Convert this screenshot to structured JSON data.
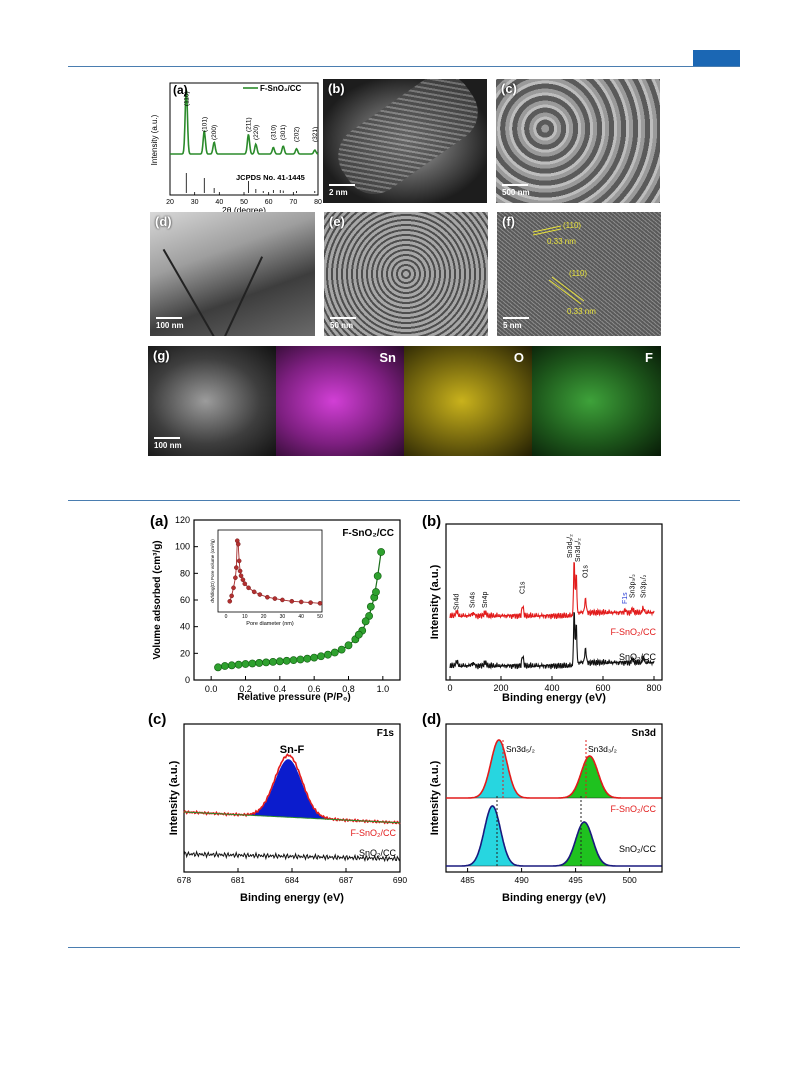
{
  "fig1": {
    "xrd": {
      "label": "(a)",
      "legend": "F-SnO₂/CC",
      "ylabel": "Intensity (a.u.)",
      "xlabel": "2θ (degree)",
      "xticks": [
        "20",
        "30",
        "40",
        "50",
        "60",
        "70",
        "80"
      ],
      "peaks": [
        "(110)",
        "(101)",
        "(200)",
        "(211)",
        "(220)",
        "(310)",
        "(301)",
        "(202)",
        "(321)"
      ],
      "reference": "JCPDS No. 41-1445"
    },
    "panels": [
      {
        "id": "b",
        "label": "(b)",
        "scale": "2 nm"
      },
      {
        "id": "c",
        "label": "(c)",
        "scale": "500 nm"
      },
      {
        "id": "d",
        "label": "(d)",
        "scale": "100 nm"
      },
      {
        "id": "e",
        "label": "(e)",
        "scale": "50 nm"
      },
      {
        "id": "f",
        "label": "(f)",
        "scale": "5 nm",
        "lattice1": "(110)",
        "spacing1": "0.33 nm",
        "lattice2": "(110)",
        "spacing2": "0.33 nm"
      }
    ],
    "mapping": {
      "label": "(g)",
      "scale": "100 nm",
      "elements": [
        "Sn",
        "O",
        "F"
      ],
      "colors": [
        "#d23fd6",
        "#c9b21c",
        "#3ea23a"
      ]
    }
  },
  "fig2": {
    "a": {
      "label": "(a)",
      "legend": "F-SnO₂/CC",
      "ylabel": "Volume adsorbed (cm³/g)",
      "xlabel": "Relative pressure (P/P₀)",
      "yticks": [
        "0",
        "20",
        "40",
        "60",
        "80",
        "100",
        "120"
      ],
      "xticks": [
        "0.0",
        "0.2",
        "0.4",
        "0.6",
        "0.8",
        "1.0"
      ],
      "inset_ylabel": "dV/dlog(D) Pore volume (cm³/g)",
      "inset_xlabel": "Pore diameter (nm)",
      "inset_xticks": [
        "0",
        "10",
        "20",
        "30",
        "40",
        "50"
      ],
      "inset_yticks": [
        "0.0",
        "0.2",
        "0.4",
        "0.6",
        "0.8",
        "1.0"
      ]
    },
    "b": {
      "label": "(b)",
      "ylabel": "Intensity (a.u.)",
      "xlabel": "Binding energy (eV)",
      "xticks": [
        "0",
        "200",
        "400",
        "600",
        "800"
      ],
      "peaks": [
        "Sn4d",
        "Sn4s",
        "Sn4p",
        "C1s",
        "Sn3d₅/₂",
        "Sn3d₃/₂",
        "O1s",
        "F1s",
        "Sn3p₃/₂",
        "Sn3p₁/₂"
      ],
      "series": [
        "F-SnO₂/CC",
        "SnO₂/CC"
      ]
    },
    "c": {
      "label": "(c)",
      "title": "F1s",
      "peak": "Sn-F",
      "ylabel": "Intensity (a.u.)",
      "xlabel": "Binding energy (eV)",
      "xticks": [
        "678",
        "681",
        "684",
        "687",
        "690"
      ],
      "series": [
        "F-SnO₂/CC",
        "SnO₂/CC"
      ]
    },
    "d": {
      "label": "(d)",
      "title": "Sn3d",
      "peaks": [
        "Sn3d₅/₂",
        "Sn3d₃/₂"
      ],
      "ylabel": "Intensity (a.u.)",
      "xlabel": "Binding energy (eV)",
      "xticks": [
        "485",
        "490",
        "495",
        "500"
      ],
      "series": [
        "F-SnO₂/CC",
        "SnO₂/CC"
      ]
    }
  },
  "chart_data": [
    {
      "type": "line",
      "x": [
        20,
        26.6,
        33.9,
        37.9,
        51.8,
        54.8,
        61.9,
        65.9,
        71.3,
        78.7
      ],
      "values": [
        0.05,
        1.0,
        0.35,
        0.18,
        0.3,
        0.15,
        0.1,
        0.12,
        0.08,
        0.06
      ],
      "xlabel": "2θ (degree)",
      "ylabel": "Intensity (a.u.)",
      "xlim": [
        20,
        80
      ]
    },
    {
      "type": "scatter",
      "x": [
        0.04,
        0.08,
        0.12,
        0.16,
        0.2,
        0.24,
        0.28,
        0.32,
        0.36,
        0.4,
        0.44,
        0.48,
        0.52,
        0.56,
        0.6,
        0.64,
        0.68,
        0.72,
        0.76,
        0.8,
        0.84,
        0.88,
        0.92,
        0.95,
        0.97,
        0.99
      ],
      "values": [
        9.5,
        10.5,
        11,
        11.5,
        12,
        12.4,
        12.8,
        13.2,
        13.6,
        14,
        14.4,
        14.9,
        15.4,
        16,
        16.8,
        17.8,
        19,
        20.6,
        22.8,
        26,
        30.5,
        37,
        48,
        62,
        78,
        96
      ],
      "xlabel": "Relative pressure (P/P₀)",
      "ylabel": "Volume adsorbed (cm³/g)",
      "xlim": [
        -0.1,
        1.1
      ],
      "ylim": [
        0,
        120
      ]
    },
    {
      "type": "scatter",
      "x": [
        2,
        3,
        4,
        5,
        5.5,
        6,
        6.5,
        7,
        7.5,
        8,
        9,
        10,
        12,
        15,
        18,
        22,
        26,
        30,
        35,
        40,
        45,
        50
      ],
      "values": [
        0.1,
        0.18,
        0.3,
        0.45,
        0.6,
        1.0,
        0.95,
        0.7,
        0.55,
        0.48,
        0.42,
        0.36,
        0.3,
        0.24,
        0.2,
        0.16,
        0.14,
        0.12,
        0.1,
        0.09,
        0.08,
        0.07
      ],
      "xlabel": "Pore diameter (nm)",
      "ylabel": "dV/dlog(D) Pore volume (cm³/g)",
      "xlim": [
        0,
        50
      ],
      "ylim": [
        0,
        1.1
      ]
    },
    {
      "type": "line",
      "x": [
        0,
        26,
        89,
        137,
        285,
        487,
        495,
        531,
        686,
        716,
        758,
        800
      ],
      "series": [
        {
          "name": "F-SnO₂/CC",
          "values": [
            0.1,
            0.25,
            0.15,
            0.18,
            0.45,
            1.0,
            0.85,
            0.4,
            0.1,
            0.12,
            0.15,
            0.1
          ]
        },
        {
          "name": "SnO₂/CC",
          "values": [
            0.1,
            0.2,
            0.12,
            0.15,
            0.3,
            1.0,
            0.8,
            0.35,
            0.05,
            0.1,
            0.12,
            0.08
          ]
        }
      ],
      "xlabel": "Binding energy (eV)",
      "ylabel": "Intensity (a.u.)",
      "xlim": [
        0,
        800
      ]
    },
    {
      "type": "line",
      "x": [
        678,
        680,
        682,
        683,
        683.8,
        684.6,
        686,
        688,
        690
      ],
      "series": [
        {
          "name": "F-SnO₂/CC",
          "values": [
            0.2,
            0.22,
            0.4,
            0.85,
            1.0,
            0.85,
            0.4,
            0.22,
            0.2
          ]
        },
        {
          "name": "SnO₂/CC",
          "values": [
            0.1,
            0.1,
            0.1,
            0.1,
            0.1,
            0.1,
            0.1,
            0.1,
            0.1
          ]
        }
      ],
      "xlabel": "Binding energy (eV)",
      "ylabel": "Intensity (a.u.)",
      "xlim": [
        678,
        690
      ]
    },
    {
      "type": "line",
      "x": [
        483,
        485,
        487.9,
        490,
        492,
        496.3,
        498,
        503
      ],
      "series": [
        {
          "name": "F-SnO₂/CC",
          "values": [
            0.1,
            0.2,
            1.0,
            0.2,
            0.2,
            0.7,
            0.2,
            0.1
          ]
        },
        {
          "name": "SnO₂/CC",
          "values": [
            0.1,
            0.2,
            1.0,
            0.2,
            0.2,
            0.7,
            0.2,
            0.1
          ]
        }
      ],
      "xlabel": "Binding energy (eV)",
      "ylabel": "Intensity (a.u.)",
      "xlim": [
        483,
        503
      ]
    }
  ]
}
